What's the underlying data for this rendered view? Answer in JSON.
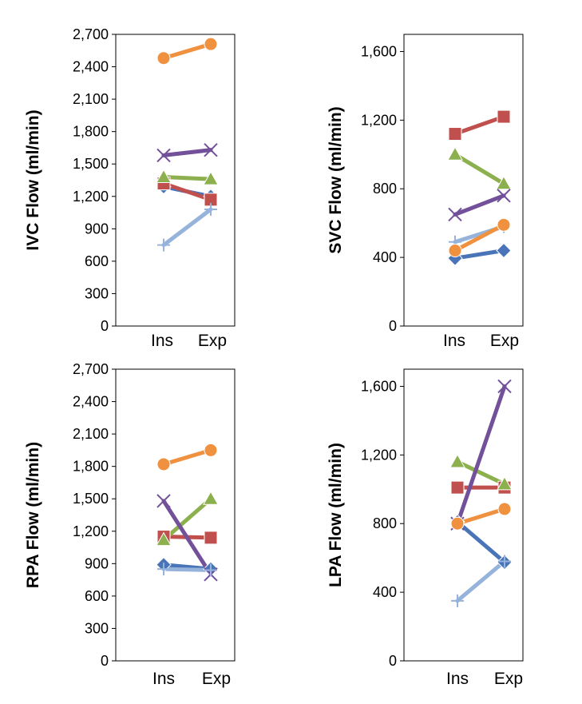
{
  "colors": {
    "blue": "#4A74B8",
    "red": "#C0504D",
    "green": "#8DB04E",
    "purple": "#72509A",
    "lightblue": "#95B3DB",
    "orange": "#F0913F"
  },
  "chart_data": [
    {
      "type": "line",
      "ylabel": "IVC Flow (ml/min)",
      "categories": [
        "Ins",
        "Exp"
      ],
      "ylim": [
        0,
        2700
      ],
      "yticks": [
        0,
        300,
        600,
        900,
        1200,
        1500,
        1800,
        2100,
        2400,
        2700
      ],
      "ytick_labels": [
        "0",
        "300",
        "600",
        "900",
        "1,200",
        "1,500",
        "1,800",
        "2,100",
        "2,400",
        "2,700"
      ],
      "series": [
        {
          "name": "blue",
          "marker": "diamond",
          "values": [
            1290,
            1200
          ]
        },
        {
          "name": "red",
          "marker": "square",
          "values": [
            1320,
            1170
          ]
        },
        {
          "name": "green",
          "marker": "triangle",
          "values": [
            1380,
            1360
          ]
        },
        {
          "name": "purple",
          "marker": "x",
          "values": [
            1580,
            1630
          ]
        },
        {
          "name": "lightblue",
          "marker": "star",
          "values": [
            750,
            1080
          ]
        },
        {
          "name": "orange",
          "marker": "circle",
          "values": [
            2480,
            2610
          ]
        }
      ]
    },
    {
      "type": "line",
      "ylabel": "SVC Flow (ml/min)",
      "categories": [
        "Ins",
        "Exp"
      ],
      "ylim": [
        0,
        1700
      ],
      "yticks": [
        0,
        400,
        800,
        1200,
        1600
      ],
      "ytick_labels": [
        "0",
        "400",
        "800",
        "1,200",
        "1,600"
      ],
      "series": [
        {
          "name": "blue",
          "marker": "diamond",
          "values": [
            395,
            440
          ]
        },
        {
          "name": "red",
          "marker": "square",
          "values": [
            1120,
            1220
          ]
        },
        {
          "name": "green",
          "marker": "triangle",
          "values": [
            1000,
            830
          ]
        },
        {
          "name": "purple",
          "marker": "x",
          "values": [
            650,
            760
          ]
        },
        {
          "name": "lightblue",
          "marker": "star",
          "values": [
            490,
            580
          ]
        },
        {
          "name": "orange",
          "marker": "circle",
          "values": [
            440,
            590
          ]
        }
      ]
    },
    {
      "type": "line",
      "ylabel": "RPA Flow (ml/min)",
      "categories": [
        "Ins",
        "Exp"
      ],
      "ylim": [
        0,
        2700
      ],
      "yticks": [
        0,
        300,
        600,
        900,
        1200,
        1500,
        1800,
        2100,
        2400,
        2700
      ],
      "ytick_labels": [
        "0",
        "300",
        "600",
        "900",
        "1,200",
        "1,500",
        "1,800",
        "2,100",
        "2,400",
        "2,700"
      ],
      "series": [
        {
          "name": "blue",
          "marker": "diamond",
          "values": [
            890,
            850
          ]
        },
        {
          "name": "red",
          "marker": "square",
          "values": [
            1150,
            1140
          ]
        },
        {
          "name": "green",
          "marker": "triangle",
          "values": [
            1120,
            1500
          ]
        },
        {
          "name": "purple",
          "marker": "x",
          "values": [
            1480,
            800
          ]
        },
        {
          "name": "lightblue",
          "marker": "star",
          "values": [
            850,
            840
          ]
        },
        {
          "name": "orange",
          "marker": "circle",
          "values": [
            1820,
            1950
          ]
        }
      ]
    },
    {
      "type": "line",
      "ylabel": "LPA Flow (ml/min)",
      "categories": [
        "Ins",
        "Exp"
      ],
      "ylim": [
        0,
        1700
      ],
      "yticks": [
        0,
        400,
        800,
        1200,
        1600
      ],
      "ytick_labels": [
        "0",
        "400",
        "800",
        "1,200",
        "1,600"
      ],
      "series": [
        {
          "name": "blue",
          "marker": "diamond",
          "values": [
            810,
            575
          ]
        },
        {
          "name": "red",
          "marker": "square",
          "values": [
            1010,
            1010
          ]
        },
        {
          "name": "green",
          "marker": "triangle",
          "values": [
            1160,
            1030
          ]
        },
        {
          "name": "purple",
          "marker": "x",
          "values": [
            800,
            1600
          ]
        },
        {
          "name": "lightblue",
          "marker": "star",
          "values": [
            350,
            580
          ]
        },
        {
          "name": "orange",
          "marker": "circle",
          "values": [
            800,
            885
          ]
        }
      ]
    }
  ]
}
